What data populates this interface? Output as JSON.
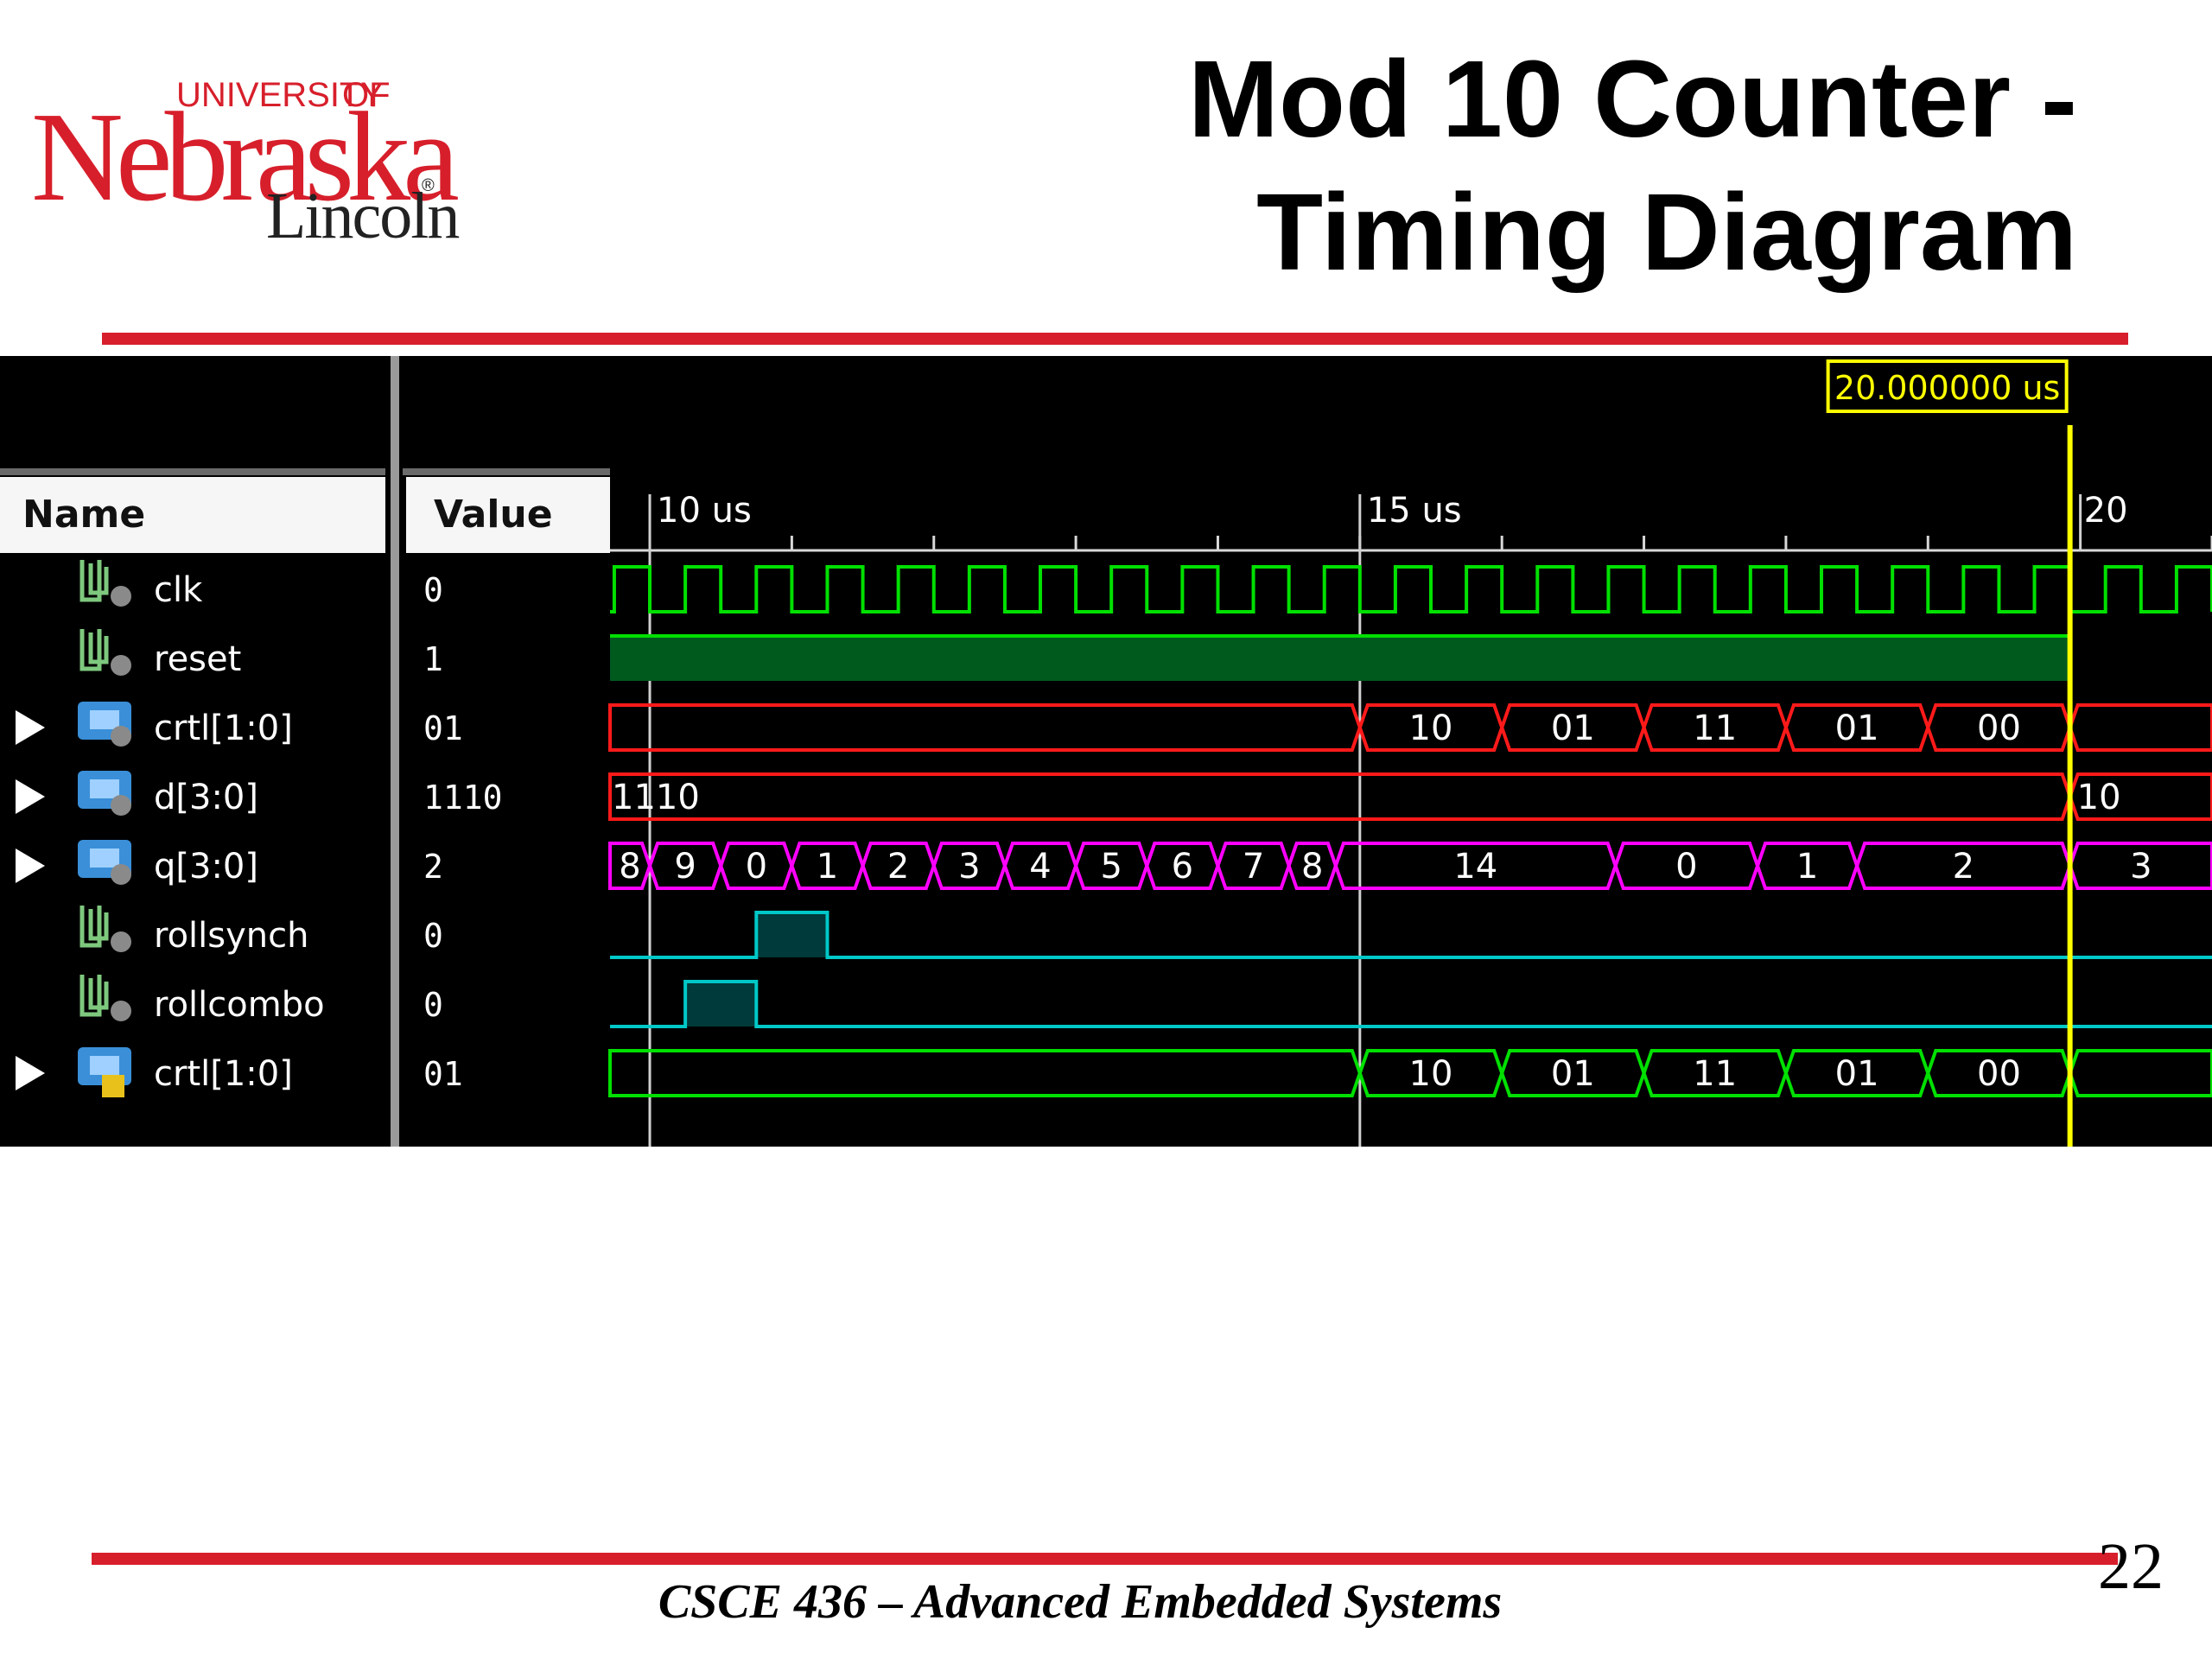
{
  "slide": {
    "title_line1": "Mod 10 Counter -",
    "title_line2": "Timing Diagram",
    "footer": "CSCE 436 – Advanced Embedded Systems",
    "page_number": "22",
    "logo": {
      "university": "UNIVERSITY",
      "of": "OF",
      "name": "Nebraska",
      "campus": "Lincoln",
      "reg": "®"
    },
    "accent_color": "#d71f2b"
  },
  "sim": {
    "headers": {
      "name": "Name",
      "value": "Value"
    },
    "cursor_readout": "20.000000 us",
    "time_markers": [
      {
        "label": "10 us",
        "t": 10
      },
      {
        "label": "15 us",
        "t": 15
      },
      {
        "label": "20",
        "t": 20
      }
    ],
    "cursor_time_us": 20,
    "view_start_us": 9.72,
    "view_end_us": 21,
    "colors": {
      "clock": "#00e000",
      "bus_red": "#ff1a1a",
      "bus_magenta": "#ff00ff",
      "cyan": "#00c8c8",
      "cursor": "#ffff00"
    },
    "signals": [
      {
        "name": "clk",
        "value": "0",
        "type": "bit",
        "icon": "wire-icon",
        "expand": false,
        "wave": {
          "kind": "clock",
          "period_us": 0.5,
          "phase_us": 0.03,
          "color": "green"
        }
      },
      {
        "name": "reset",
        "value": "1",
        "type": "bit",
        "icon": "wire-icon",
        "expand": false,
        "wave": {
          "kind": "high",
          "color": "green"
        }
      },
      {
        "name": "crtl[1:0]",
        "value": "01",
        "type": "bus",
        "icon": "bus-icon",
        "expand": true,
        "wave": {
          "kind": "bus",
          "color": "red",
          "segments": [
            {
              "t0": 9.72,
              "t1": 15.0,
              "label": ""
            },
            {
              "t0": 15.0,
              "t1": 16.0,
              "label": "10"
            },
            {
              "t0": 16.0,
              "t1": 17.0,
              "label": "01"
            },
            {
              "t0": 17.0,
              "t1": 18.0,
              "label": "11"
            },
            {
              "t0": 18.0,
              "t1": 19.0,
              "label": "01"
            },
            {
              "t0": 19.0,
              "t1": 20.0,
              "label": "00"
            },
            {
              "t0": 20.0,
              "t1": 21.0,
              "label": ""
            }
          ]
        }
      },
      {
        "name": "d[3:0]",
        "value": "1110",
        "type": "bus",
        "icon": "bus-icon",
        "expand": true,
        "wave": {
          "kind": "bus",
          "color": "red",
          "label_at_start": "1110",
          "label_at_end": "10",
          "segments": [
            {
              "t0": 9.72,
              "t1": 20.0,
              "label": ""
            },
            {
              "t0": 20.0,
              "t1": 21.0,
              "label": ""
            }
          ]
        }
      },
      {
        "name": "q[3:0]",
        "value": "2",
        "type": "bus",
        "icon": "bus-icon",
        "expand": true,
        "wave": {
          "kind": "bus",
          "color": "magenta",
          "segments": [
            {
              "t0": 9.72,
              "t1": 10.0,
              "label": "8"
            },
            {
              "t0": 10.0,
              "t1": 10.5,
              "label": "9"
            },
            {
              "t0": 10.5,
              "t1": 11.0,
              "label": "0"
            },
            {
              "t0": 11.0,
              "t1": 11.5,
              "label": "1"
            },
            {
              "t0": 11.5,
              "t1": 12.0,
              "label": "2"
            },
            {
              "t0": 12.0,
              "t1": 12.5,
              "label": "3"
            },
            {
              "t0": 12.5,
              "t1": 13.0,
              "label": "4"
            },
            {
              "t0": 13.0,
              "t1": 13.5,
              "label": "5"
            },
            {
              "t0": 13.5,
              "t1": 14.0,
              "label": "6"
            },
            {
              "t0": 14.0,
              "t1": 14.5,
              "label": "7"
            },
            {
              "t0": 14.5,
              "t1": 14.83,
              "label": "8"
            },
            {
              "t0": 14.83,
              "t1": 16.8,
              "label": "14"
            },
            {
              "t0": 16.8,
              "t1": 17.8,
              "label": "0"
            },
            {
              "t0": 17.8,
              "t1": 18.5,
              "label": "1"
            },
            {
              "t0": 18.5,
              "t1": 20.0,
              "label": "2"
            },
            {
              "t0": 20.0,
              "t1": 21.0,
              "label": "3"
            }
          ]
        }
      },
      {
        "name": "rollsynch",
        "value": "0",
        "type": "bit",
        "icon": "wire-icon",
        "expand": false,
        "wave": {
          "kind": "pulses",
          "color": "cyan",
          "pulses": [
            {
              "t0": 10.75,
              "t1": 11.25
            }
          ]
        }
      },
      {
        "name": "rollcombo",
        "value": "0",
        "type": "bit",
        "icon": "wire-icon",
        "expand": false,
        "wave": {
          "kind": "pulses",
          "color": "cyan",
          "pulses": [
            {
              "t0": 10.25,
              "t1": 10.75
            }
          ]
        }
      },
      {
        "name": "crtl[1:0]",
        "value": "01",
        "type": "bus",
        "icon": "input-bus-icon",
        "expand": true,
        "wave": {
          "kind": "bus",
          "color": "green",
          "segments": [
            {
              "t0": 9.72,
              "t1": 15.0,
              "label": ""
            },
            {
              "t0": 15.0,
              "t1": 16.0,
              "label": "10"
            },
            {
              "t0": 16.0,
              "t1": 17.0,
              "label": "01"
            },
            {
              "t0": 17.0,
              "t1": 18.0,
              "label": "11"
            },
            {
              "t0": 18.0,
              "t1": 19.0,
              "label": "01"
            },
            {
              "t0": 19.0,
              "t1": 20.0,
              "label": "00"
            },
            {
              "t0": 20.0,
              "t1": 21.0,
              "label": ""
            }
          ]
        }
      }
    ]
  }
}
